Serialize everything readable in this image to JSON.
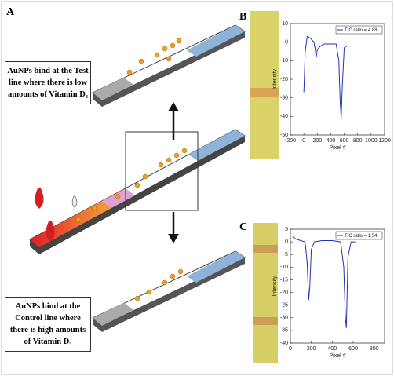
{
  "panels": {
    "a": "A",
    "b": "B",
    "c": "C"
  },
  "notes": {
    "test": [
      "AuNPs bind at the Test",
      "line where there is low",
      "amounts of Vitamin D₃"
    ],
    "control": [
      "AuNPs bind at the",
      "Control line where",
      "there is high amounts",
      "of Vitamin D₃"
    ]
  },
  "chart_data": [
    {
      "type": "line",
      "xlabel": "Pixel #",
      "ylabel": "Intensity",
      "xlim": [
        -200,
        1200
      ],
      "xticks": [
        -200,
        0,
        200,
        400,
        600,
        800,
        1000,
        1200
      ],
      "ylim": [
        -50,
        10
      ],
      "yticks": [
        10,
        0,
        -10,
        -20,
        -30,
        -40,
        -50
      ],
      "series": [
        {
          "name": "T/C ratio = 4.88",
          "color": "#2233bb",
          "x": [
            0,
            20,
            50,
            100,
            150,
            170,
            185,
            200,
            250,
            300,
            400,
            480,
            520,
            540,
            555,
            570,
            600,
            640,
            680
          ],
          "values": [
            -27,
            -5,
            3,
            2,
            0,
            -4,
            -8,
            -4,
            -2,
            -1,
            -1,
            -1,
            -10,
            -32,
            -41,
            -25,
            -3,
            -2,
            -2
          ]
        }
      ],
      "legend": "upper right"
    },
    {
      "type": "line",
      "xlabel": "Pixel #",
      "ylabel": "Intensity",
      "xlim": [
        0,
        900
      ],
      "xticks": [
        0,
        200,
        400,
        600,
        800
      ],
      "ylim": [
        -40,
        5
      ],
      "yticks": [
        5,
        0,
        -5,
        -10,
        -15,
        -20,
        -25,
        -30,
        -35,
        -40
      ],
      "series": [
        {
          "name": "T/C ratio = 1.54",
          "color": "#2233bb",
          "x": [
            20,
            60,
            100,
            140,
            160,
            175,
            185,
            200,
            230,
            300,
            400,
            480,
            510,
            525,
            535,
            550,
            580,
            620
          ],
          "values": [
            2,
            1,
            0.5,
            0,
            -8,
            -23,
            -18,
            -3,
            0,
            0.5,
            0.5,
            0,
            -10,
            -30,
            -34,
            -6,
            0,
            0
          ]
        }
      ],
      "legend": "upper right"
    }
  ]
}
